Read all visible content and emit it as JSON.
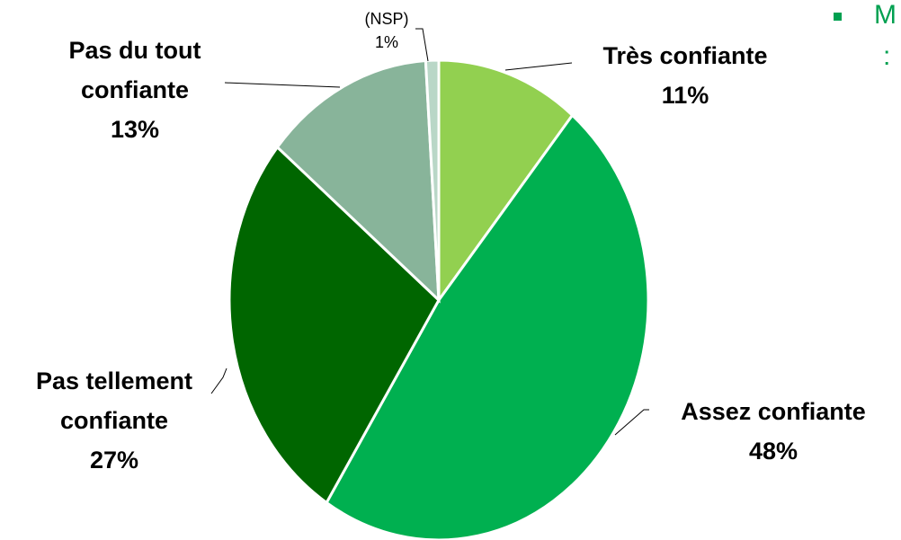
{
  "chart_data": {
    "type": "pie",
    "categories": [
      "Très confiante",
      "Assez confiante",
      "Pas tellement confiante",
      "Pas du tout confiante",
      "(NSP)"
    ],
    "values": [
      11,
      48,
      27,
      13,
      1
    ],
    "value_labels": [
      "11%",
      "48%",
      "27%",
      "13%",
      "1%"
    ],
    "colors": [
      "#92d050",
      "#00b050",
      "#006600",
      "#88b49a",
      "#b9d7c7"
    ]
  },
  "side_note": {
    "lines": [
      "M",
      ":"
    ]
  }
}
